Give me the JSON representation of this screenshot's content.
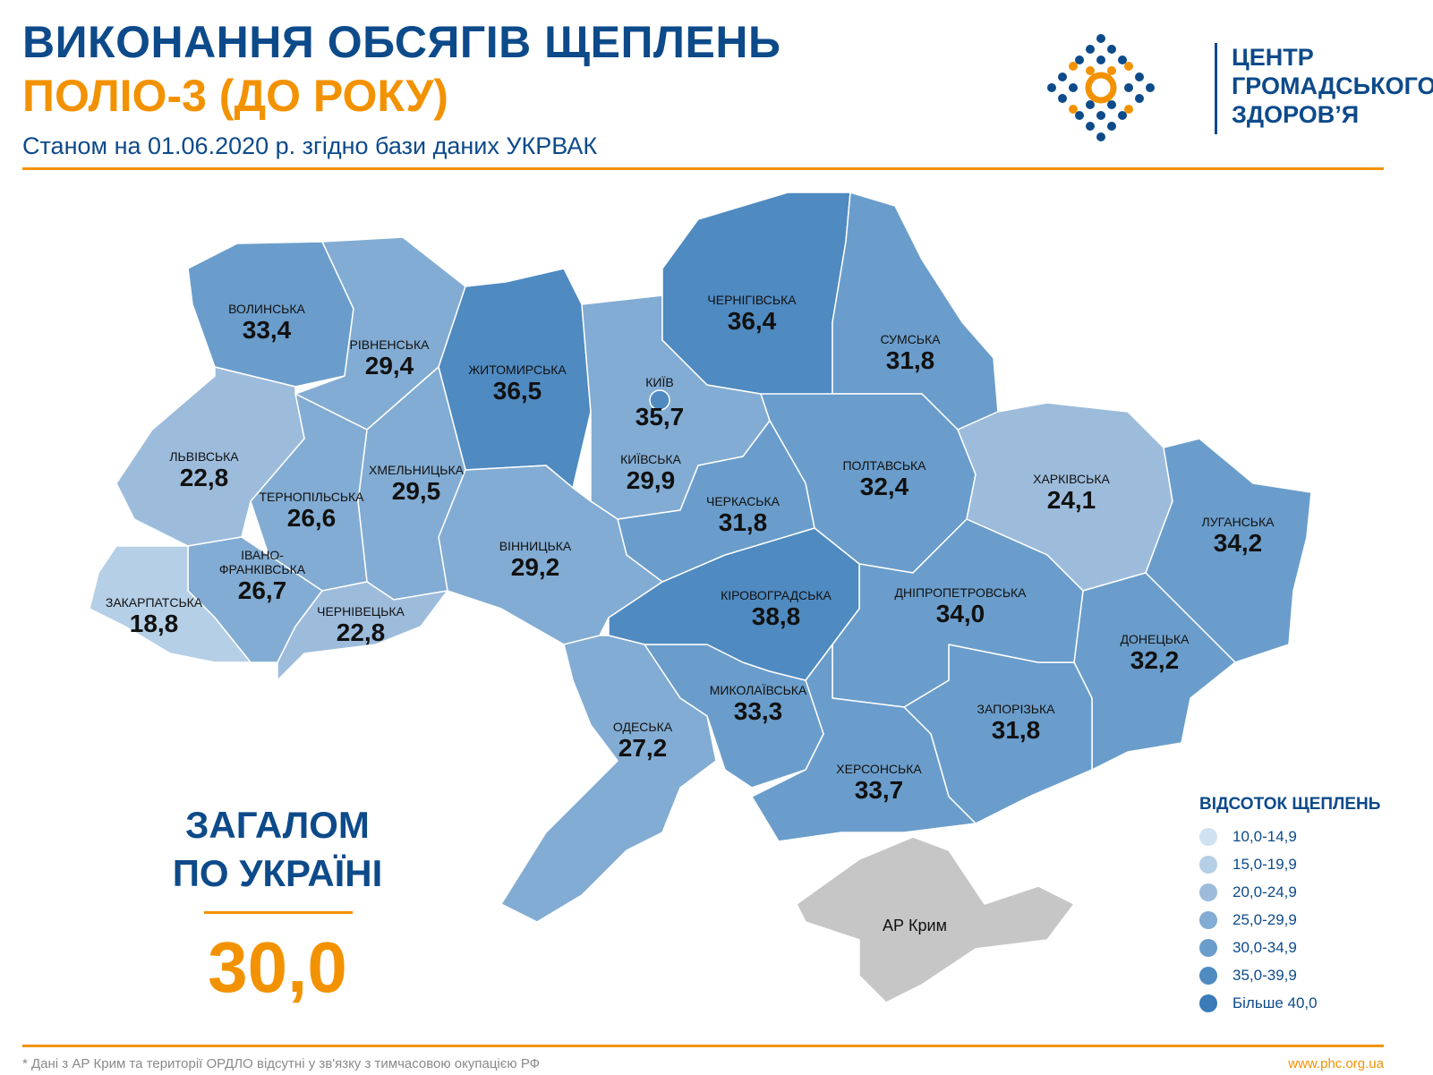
{
  "header": {
    "title_line1": "ВИКОНАННЯ ОБСЯГІВ ЩЕПЛЕНЬ",
    "title_line2": "ПОЛІО-3 (ДО РОКУ)",
    "subtitle": "Станом на 01.06.2020 р. згідно бази даних УКРВАК"
  },
  "logo": {
    "line1": "ЦЕНТР",
    "line2": "ГРОМАДСЬКОГО",
    "line3": "ЗДОРОВ’Я",
    "colors": {
      "blue": "#0d4a8a",
      "orange": "#f39200"
    }
  },
  "total": {
    "label_line1": "ЗАГАЛОМ",
    "label_line2": "ПО УКРАЇНІ",
    "value": "30,0"
  },
  "regions": [
    {
      "id": "volynska",
      "name": "ВОЛИНСЬКА",
      "value": "33,4"
    },
    {
      "id": "rivnenska",
      "name": "РІВНЕНСЬКА",
      "value": "29,4"
    },
    {
      "id": "zhytomyrska",
      "name": "ЖИТОМИРСЬКА",
      "value": "36,5"
    },
    {
      "id": "kyivska",
      "name": "КИЇВСЬКА",
      "value": "29,9"
    },
    {
      "id": "chernihivska",
      "name": "ЧЕРНІГІВСЬКА",
      "value": "36,4"
    },
    {
      "id": "sumska",
      "name": "СУМСЬКА",
      "value": "31,8"
    },
    {
      "id": "poltavska",
      "name": "ПОЛТАВСЬКА",
      "value": "32,4"
    },
    {
      "id": "kharkivska",
      "name": "ХАРКІВСЬКА",
      "value": "24,1"
    },
    {
      "id": "luhanska",
      "name": "ЛУГАНСЬКА",
      "value": "34,2"
    },
    {
      "id": "donetska",
      "name": "ДОНЕЦЬКА",
      "value": "32,2"
    },
    {
      "id": "zaporizka",
      "name": "ЗАПОРІЗЬКА",
      "value": "31,8"
    },
    {
      "id": "dnipropetrovska",
      "name": "ДНІПРОПЕТРОВСЬКА",
      "value": "34,0"
    },
    {
      "id": "khersonska",
      "name": "ХЕРСОНСЬКА",
      "value": "33,7"
    },
    {
      "id": "mykolaivska",
      "name": "МИКОЛАЇВСЬКА",
      "value": "33,3"
    },
    {
      "id": "kirovohradska",
      "name": "КІРОВОГРАДСЬКА",
      "value": "38,8"
    },
    {
      "id": "cherkaska",
      "name": "ЧЕРКАСЬКА",
      "value": "31,8"
    },
    {
      "id": "vinnytska",
      "name": "ВІННИЦЬКА",
      "value": "29,2"
    },
    {
      "id": "odeska",
      "name": "ОДЕСЬКА",
      "value": "27,2"
    },
    {
      "id": "khmelnytska",
      "name": "ХМЕЛЬНИЦЬКА",
      "value": "29,5"
    },
    {
      "id": "ternopilska",
      "name": "ТЕРНОПІЛЬСЬКА",
      "value": "26,6"
    },
    {
      "id": "lvivska",
      "name": "ЛЬВІВСЬКА",
      "value": "22,8"
    },
    {
      "id": "ivano",
      "name": "ІВАНО-\nФРАНКІВСЬКА",
      "value": "26,7"
    },
    {
      "id": "chernivetska",
      "name": "ЧЕРНІВЕЦЬКА",
      "value": "22,8"
    },
    {
      "id": "zakarpatska",
      "name": "ЗАКАРПАТСЬКА",
      "value": "18,8"
    },
    {
      "id": "kyiv",
      "name": "КИЇВ",
      "value": "35,7"
    },
    {
      "id": "crimea",
      "name": "АР Крим",
      "value": null
    }
  ],
  "legend": {
    "title": "ВІДСОТОК ЩЕПЛЕНЬ",
    "items": [
      {
        "label": "10,0-14,9",
        "min": 10,
        "color": "#cfe2f1"
      },
      {
        "label": "15,0-19,9",
        "min": 15,
        "color": "#b5cfe6"
      },
      {
        "label": "20,0-24,9",
        "min": 20,
        "color": "#9dbcdc"
      },
      {
        "label": "25,0-29,9",
        "min": 25,
        "color": "#82acd3"
      },
      {
        "label": "30,0-34,9",
        "min": 30,
        "color": "#6a9dcb"
      },
      {
        "label": "35,0-39,9",
        "min": 35,
        "color": "#4f8ac1"
      },
      {
        "label": "Більше 40,0",
        "min": 40,
        "color": "#3a7bb8"
      }
    ],
    "no_data_color": "#c6c6c6"
  },
  "footer": {
    "note": "* Дані з АР Крим та території ОРДЛО відсутні у зв'язку з тимчасовою окупацією РФ",
    "url": "www.phc.org.ua"
  }
}
